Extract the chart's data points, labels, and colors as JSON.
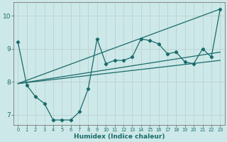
{
  "xlabel": "Humidex (Indice chaleur)",
  "background_color": "#cde8e8",
  "grid_color": "#bbcccc",
  "line_color": "#1a6b6b",
  "xlim": [
    -0.5,
    23.5
  ],
  "ylim": [
    6.7,
    10.4
  ],
  "yticks": [
    7,
    8,
    9,
    10
  ],
  "xticks": [
    0,
    1,
    2,
    3,
    4,
    5,
    6,
    7,
    8,
    9,
    10,
    11,
    12,
    13,
    14,
    15,
    16,
    17,
    18,
    19,
    20,
    21,
    22,
    23
  ],
  "series1_x": [
    0,
    1,
    2,
    3,
    4,
    5,
    6,
    7,
    8,
    9,
    10,
    11,
    12,
    13,
    14,
    15,
    16,
    17,
    18,
    19,
    20,
    21,
    22,
    23
  ],
  "series1_y": [
    9.2,
    7.9,
    7.55,
    7.35,
    6.85,
    6.85,
    6.85,
    7.1,
    7.8,
    9.3,
    8.55,
    8.65,
    8.65,
    8.75,
    9.3,
    9.25,
    9.15,
    8.85,
    8.9,
    8.6,
    8.55,
    9.0,
    8.75,
    10.2
  ],
  "series2_x": [
    0,
    23
  ],
  "series2_y": [
    7.95,
    10.2
  ],
  "series3_x": [
    0,
    23
  ],
  "series3_y": [
    7.95,
    8.65
  ],
  "series4_x": [
    0,
    23
  ],
  "series4_y": [
    7.95,
    8.9
  ]
}
